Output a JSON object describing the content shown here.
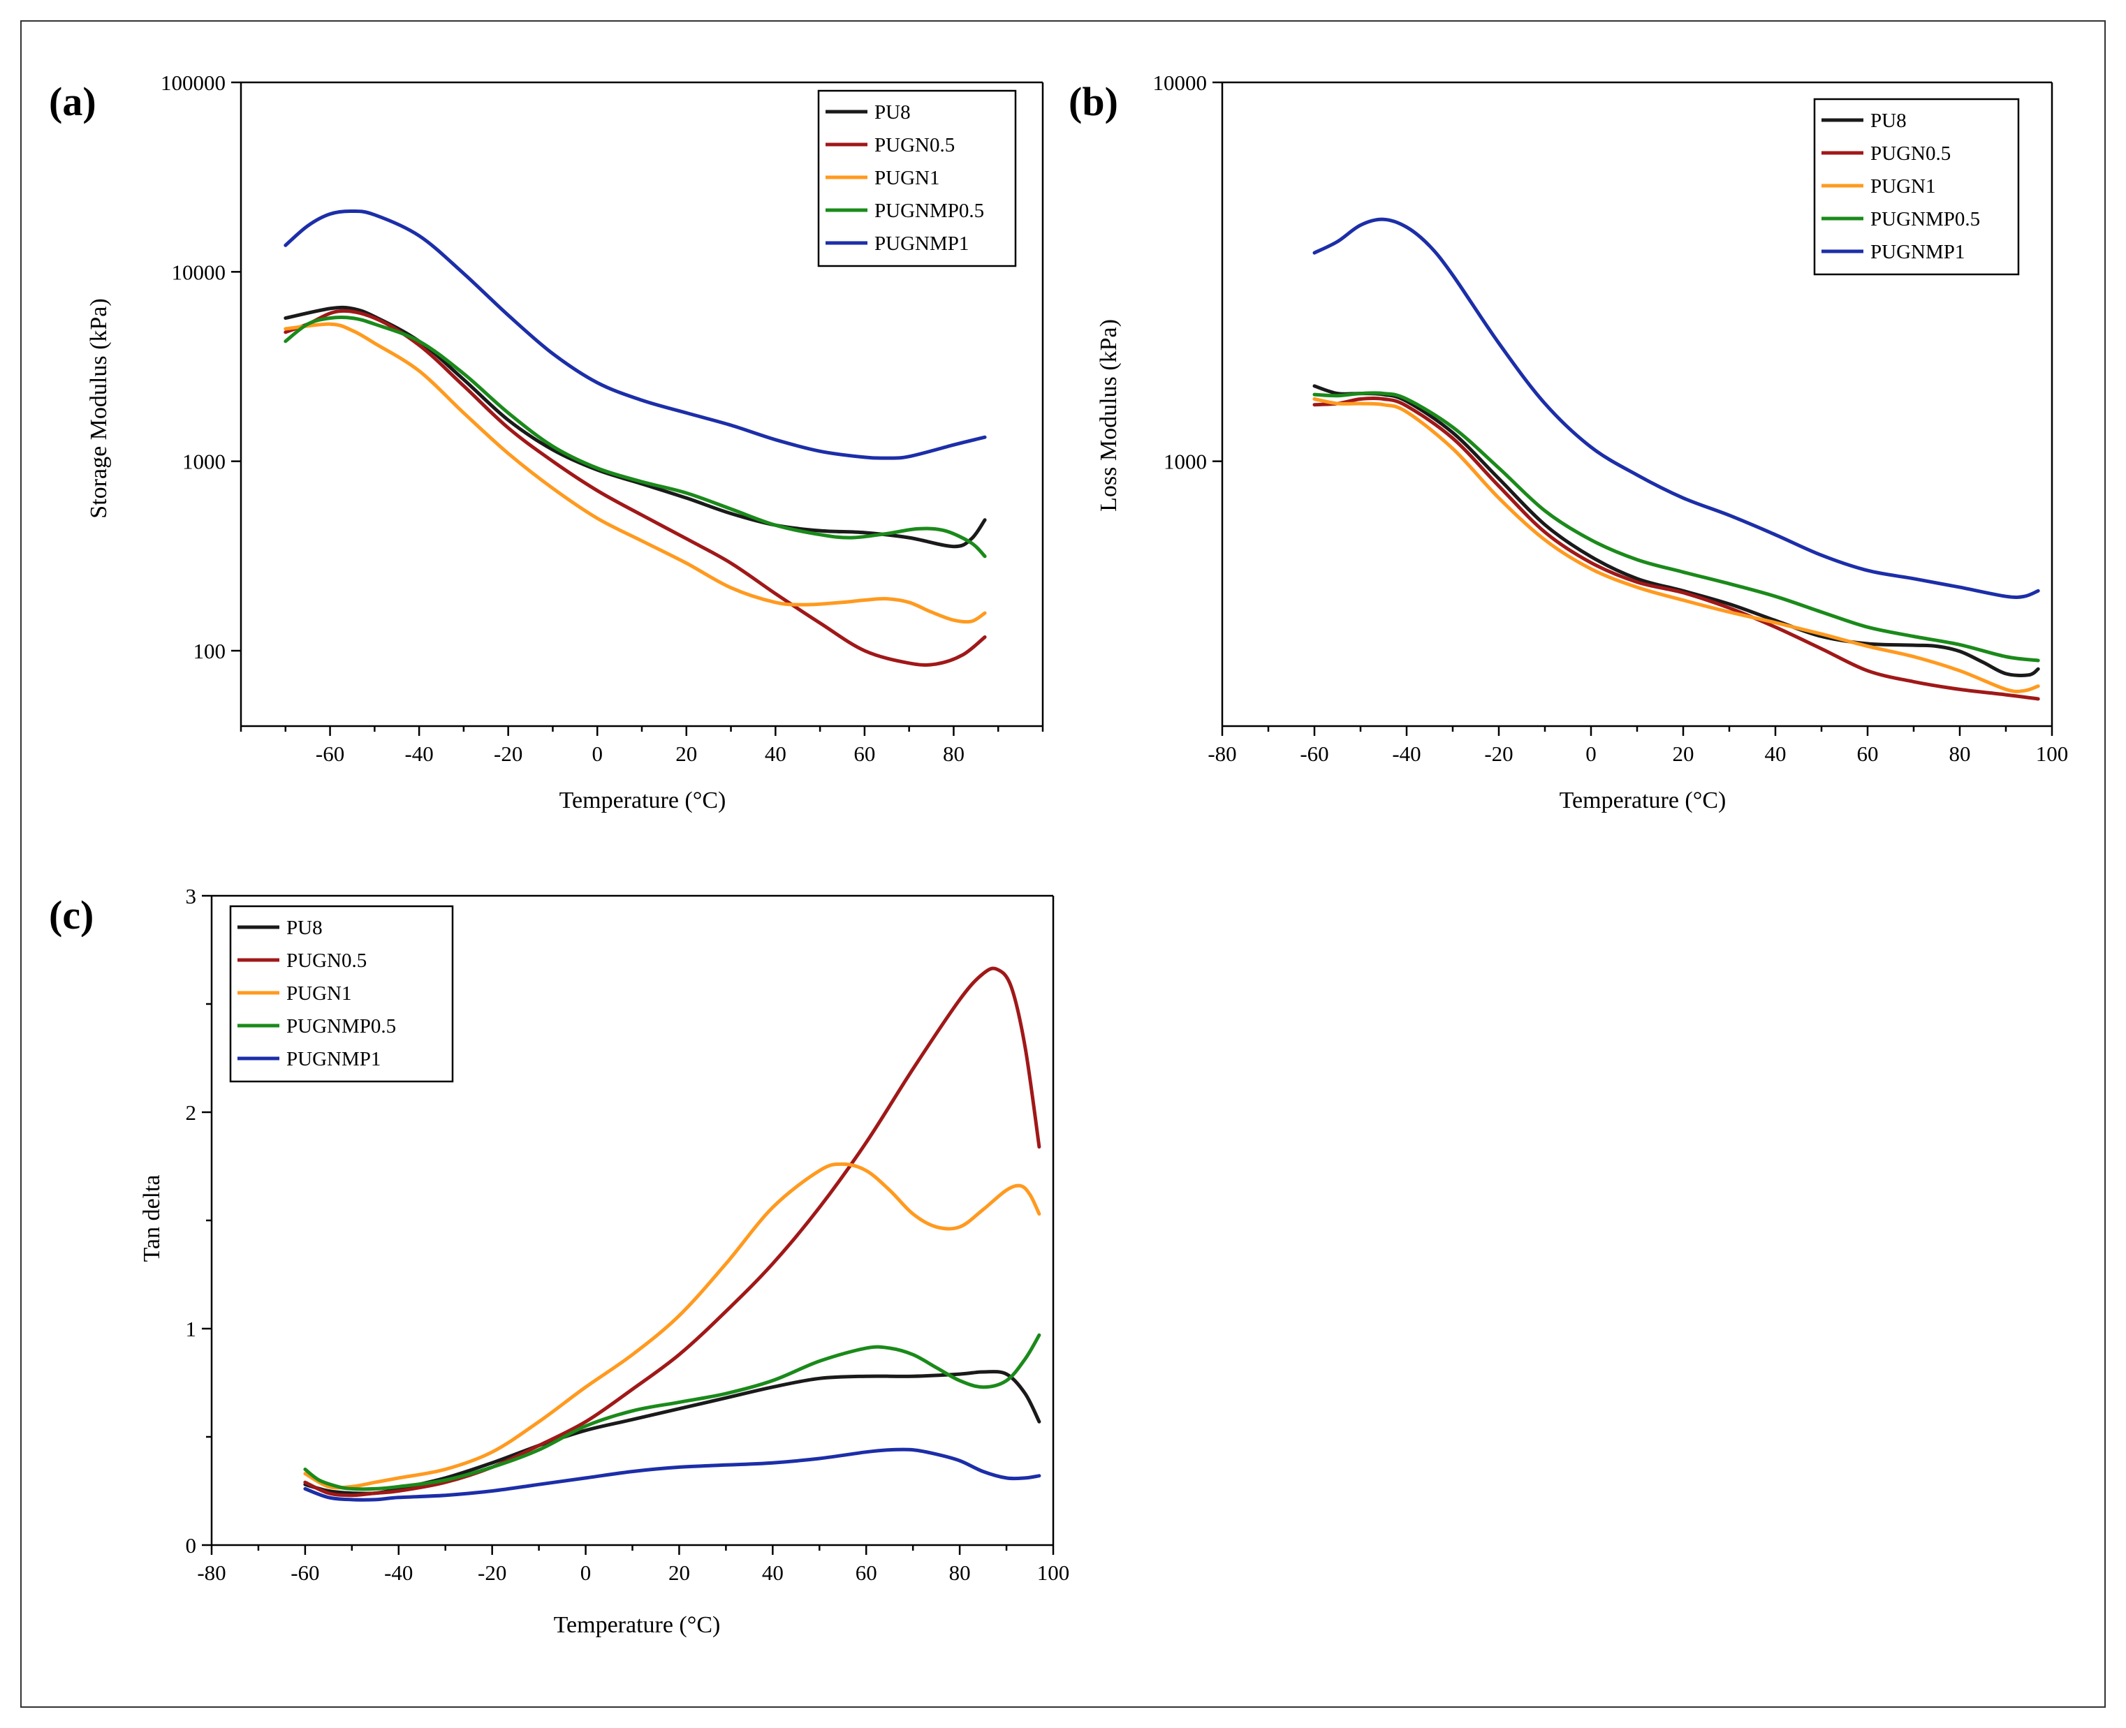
{
  "colors": {
    "PU8": "#1a1a1a",
    "PUGN0.5": "#a01818",
    "PUGN1": "#ff9a1f",
    "PUGNMP0.5": "#1a8a1a",
    "PUGNMP1": "#1c2ea8"
  },
  "chart_data": [
    {
      "type": "line",
      "panel_label": "(a)",
      "xlabel": "Temperature (°C)",
      "ylabel": "Storage Modulus (kPa)",
      "yscale": "log",
      "xlim": [
        -80,
        100
      ],
      "ylim": [
        40,
        100000
      ],
      "xticks": [
        -60,
        -40,
        -20,
        0,
        20,
        40,
        60,
        80
      ],
      "xtick_labels": [
        "-60",
        "-40",
        "-20",
        "0",
        "20",
        "40",
        "60",
        "80"
      ],
      "yticks": [
        100,
        1000,
        10000,
        100000
      ],
      "ytick_labels": [
        "100",
        "1000",
        "10000",
        "100000"
      ],
      "legend_position": "top-right",
      "series": [
        {
          "name": "PU8",
          "x": [
            -70,
            -60,
            -55,
            -50,
            -40,
            -30,
            -20,
            -10,
            0,
            10,
            20,
            30,
            40,
            50,
            60,
            70,
            80,
            84,
            87
          ],
          "y": [
            5700,
            6400,
            6400,
            5800,
            4300,
            2700,
            1650,
            1150,
            900,
            760,
            640,
            530,
            460,
            430,
            420,
            395,
            355,
            390,
            490
          ]
        },
        {
          "name": "PUGN0.5",
          "x": [
            -70,
            -65,
            -58,
            -50,
            -40,
            -30,
            -20,
            -10,
            0,
            10,
            20,
            30,
            40,
            50,
            60,
            70,
            76,
            82,
            87
          ],
          "y": [
            4800,
            5300,
            6200,
            5700,
            4100,
            2500,
            1500,
            1000,
            700,
            520,
            390,
            290,
            200,
            140,
            100,
            86,
            85,
            95,
            118
          ]
        },
        {
          "name": "PUGN1",
          "x": [
            -70,
            -60,
            -55,
            -50,
            -40,
            -30,
            -20,
            -10,
            0,
            10,
            20,
            30,
            40,
            47,
            55,
            60,
            65,
            70,
            75,
            80,
            84,
            87
          ],
          "y": [
            5000,
            5300,
            4900,
            4200,
            3000,
            1800,
            1100,
            720,
            500,
            380,
            290,
            215,
            180,
            175,
            180,
            185,
            188,
            180,
            160,
            145,
            143,
            158
          ]
        },
        {
          "name": "PUGNMP0.5",
          "x": [
            -70,
            -65,
            -60,
            -55,
            -50,
            -40,
            -30,
            -20,
            -10,
            0,
            10,
            20,
            30,
            40,
            50,
            57,
            65,
            72,
            78,
            84,
            87
          ],
          "y": [
            4300,
            5300,
            5700,
            5700,
            5300,
            4300,
            2900,
            1800,
            1200,
            920,
            780,
            680,
            560,
            460,
            410,
            395,
            415,
            440,
            430,
            370,
            315
          ]
        },
        {
          "name": "PUGNMP1",
          "x": [
            -70,
            -65,
            -60,
            -55,
            -50,
            -40,
            -30,
            -20,
            -10,
            0,
            10,
            20,
            30,
            40,
            50,
            60,
            65,
            70,
            80,
            87
          ],
          "y": [
            13800,
            17500,
            20200,
            20900,
            20000,
            15500,
            9800,
            5900,
            3700,
            2600,
            2100,
            1800,
            1550,
            1300,
            1130,
            1050,
            1040,
            1060,
            1220,
            1340
          ]
        }
      ]
    },
    {
      "type": "line",
      "panel_label": "(b)",
      "xlabel": "Temperature (°C)",
      "ylabel": "Loss Modulus (kPa)",
      "yscale": "log",
      "xlim": [
        -80,
        100
      ],
      "ylim": [
        200,
        10000
      ],
      "xticks": [
        -80,
        -60,
        -40,
        -20,
        0,
        20,
        40,
        60,
        80,
        100
      ],
      "xtick_labels": [
        "-80",
        "-60",
        "-40",
        "-20",
        "0",
        "20",
        "40",
        "60",
        "80",
        "100"
      ],
      "yticks": [
        1000,
        10000
      ],
      "ytick_labels": [
        "1000",
        "10000"
      ],
      "legend_position": "top-right",
      "series": [
        {
          "name": "PU8",
          "x": [
            -60,
            -55,
            -50,
            -45,
            -40,
            -30,
            -20,
            -10,
            0,
            10,
            20,
            30,
            40,
            50,
            60,
            70,
            75,
            80,
            85,
            90,
            95,
            97
          ],
          "y": [
            1580,
            1510,
            1510,
            1500,
            1440,
            1190,
            900,
            680,
            560,
            490,
            455,
            420,
            380,
            345,
            330,
            327,
            325,
            315,
            295,
            275,
            273,
            283
          ]
        },
        {
          "name": "PUGN0.5",
          "x": [
            -60,
            -55,
            -50,
            -45,
            -40,
            -30,
            -20,
            -10,
            0,
            10,
            20,
            30,
            40,
            50,
            60,
            70,
            80,
            90,
            97
          ],
          "y": [
            1410,
            1420,
            1460,
            1460,
            1400,
            1150,
            860,
            650,
            540,
            480,
            450,
            410,
            365,
            320,
            280,
            262,
            250,
            242,
            236
          ]
        },
        {
          "name": "PUGN1",
          "x": [
            -60,
            -55,
            -50,
            -45,
            -40,
            -30,
            -20,
            -10,
            0,
            10,
            20,
            30,
            40,
            50,
            60,
            70,
            80,
            90,
            94,
            97
          ],
          "y": [
            1460,
            1420,
            1420,
            1410,
            1350,
            1080,
            800,
            620,
            520,
            465,
            430,
            400,
            375,
            350,
            325,
            305,
            280,
            250,
            248,
            255
          ]
        },
        {
          "name": "PUGNMP0.5",
          "x": [
            -60,
            -55,
            -50,
            -45,
            -40,
            -30,
            -20,
            -10,
            0,
            10,
            20,
            30,
            40,
            50,
            60,
            70,
            80,
            90,
            97
          ],
          "y": [
            1500,
            1490,
            1510,
            1510,
            1460,
            1230,
            960,
            740,
            620,
            550,
            510,
            475,
            440,
            400,
            365,
            345,
            328,
            305,
            298
          ]
        },
        {
          "name": "PUGNMP1",
          "x": [
            -60,
            -55,
            -50,
            -45,
            -40,
            -35,
            -30,
            -20,
            -10,
            0,
            10,
            20,
            30,
            40,
            50,
            60,
            70,
            80,
            90,
            94,
            97
          ],
          "y": [
            3550,
            3800,
            4200,
            4350,
            4150,
            3700,
            3100,
            2050,
            1420,
            1090,
            920,
            800,
            720,
            640,
            565,
            515,
            490,
            465,
            440,
            440,
            455
          ]
        }
      ]
    },
    {
      "type": "line",
      "panel_label": "(c)",
      "xlabel": "Temperature (°C)",
      "ylabel": "Tan delta",
      "yscale": "linear",
      "xlim": [
        -80,
        100
      ],
      "ylim": [
        0,
        3
      ],
      "xticks": [
        -80,
        -60,
        -40,
        -20,
        0,
        20,
        40,
        60,
        80,
        100
      ],
      "xtick_labels": [
        "-80",
        "-60",
        "-40",
        "-20",
        "0",
        "20",
        "40",
        "60",
        "80",
        "100"
      ],
      "yticks": [
        0,
        1,
        2,
        3
      ],
      "ytick_labels": [
        "0",
        "1",
        "2",
        "3"
      ],
      "legend_position": "top-left",
      "series": [
        {
          "name": "PU8",
          "x": [
            -60,
            -55,
            -50,
            -45,
            -40,
            -30,
            -20,
            -10,
            0,
            10,
            20,
            30,
            40,
            50,
            60,
            70,
            80,
            85,
            90,
            94,
            97
          ],
          "y": [
            0.28,
            0.25,
            0.24,
            0.24,
            0.26,
            0.31,
            0.38,
            0.46,
            0.53,
            0.58,
            0.63,
            0.68,
            0.73,
            0.77,
            0.78,
            0.78,
            0.79,
            0.8,
            0.79,
            0.7,
            0.57
          ]
        },
        {
          "name": "PUGN0.5",
          "x": [
            -60,
            -55,
            -50,
            -45,
            -40,
            -30,
            -20,
            -10,
            0,
            10,
            20,
            30,
            40,
            50,
            60,
            70,
            80,
            85,
            88,
            91,
            94,
            97
          ],
          "y": [
            0.29,
            0.24,
            0.23,
            0.24,
            0.25,
            0.29,
            0.36,
            0.46,
            0.57,
            0.72,
            0.88,
            1.08,
            1.3,
            1.56,
            1.86,
            2.2,
            2.52,
            2.64,
            2.66,
            2.58,
            2.3,
            1.84
          ]
        },
        {
          "name": "PUGN1",
          "x": [
            -60,
            -55,
            -50,
            -45,
            -40,
            -30,
            -20,
            -10,
            0,
            10,
            20,
            30,
            40,
            50,
            55,
            60,
            65,
            70,
            75,
            80,
            85,
            90,
            93,
            95,
            97
          ],
          "y": [
            0.33,
            0.27,
            0.27,
            0.29,
            0.31,
            0.35,
            0.43,
            0.57,
            0.73,
            0.88,
            1.06,
            1.3,
            1.56,
            1.73,
            1.76,
            1.73,
            1.64,
            1.53,
            1.47,
            1.47,
            1.55,
            1.64,
            1.66,
            1.62,
            1.53
          ]
        },
        {
          "name": "PUGNMP0.5",
          "x": [
            -60,
            -57,
            -53,
            -50,
            -45,
            -40,
            -30,
            -20,
            -10,
            0,
            10,
            20,
            30,
            40,
            50,
            60,
            65,
            70,
            75,
            80,
            85,
            90,
            94,
            97
          ],
          "y": [
            0.35,
            0.3,
            0.27,
            0.26,
            0.26,
            0.27,
            0.3,
            0.36,
            0.44,
            0.55,
            0.62,
            0.66,
            0.7,
            0.76,
            0.85,
            0.91,
            0.91,
            0.88,
            0.82,
            0.76,
            0.73,
            0.76,
            0.86,
            0.97
          ]
        },
        {
          "name": "PUGNMP1",
          "x": [
            -60,
            -55,
            -50,
            -45,
            -40,
            -30,
            -20,
            -10,
            0,
            10,
            20,
            30,
            40,
            50,
            60,
            65,
            70,
            75,
            80,
            85,
            90,
            94,
            97
          ],
          "y": [
            0.26,
            0.22,
            0.21,
            0.21,
            0.22,
            0.23,
            0.25,
            0.28,
            0.31,
            0.34,
            0.36,
            0.37,
            0.38,
            0.4,
            0.43,
            0.44,
            0.44,
            0.42,
            0.39,
            0.34,
            0.31,
            0.31,
            0.32
          ]
        }
      ]
    }
  ]
}
